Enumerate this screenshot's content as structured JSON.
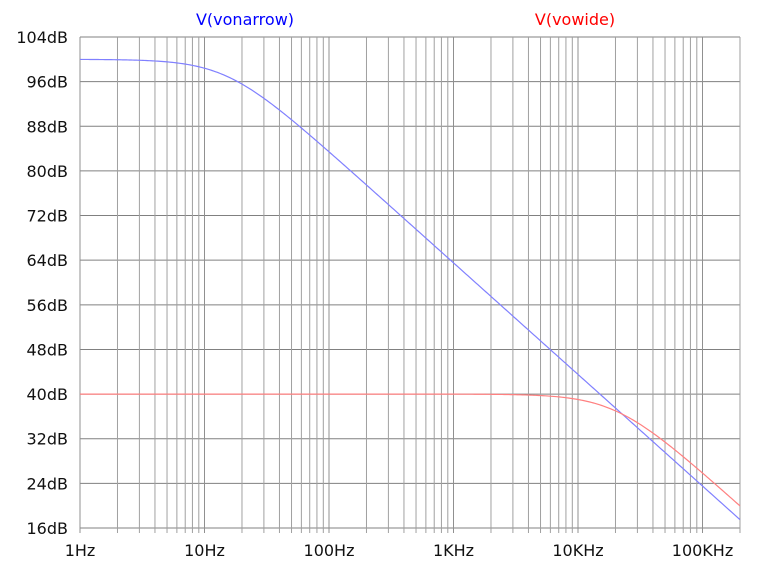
{
  "chart_data": {
    "type": "line",
    "title": "",
    "xlabel": "",
    "ylabel": "",
    "x_scale": "log",
    "xlim_hz": [
      1,
      200000
    ],
    "ylim": [
      16,
      104
    ],
    "grid": true,
    "legend_position": "top",
    "x_tick_labels": [
      "1Hz",
      "10Hz",
      "100Hz",
      "1KHz",
      "10KHz",
      "100KHz"
    ],
    "x_ticks_hz": [
      1,
      10,
      100,
      1000,
      10000,
      100000
    ],
    "y_tick_labels": [
      "104dB",
      "96dB",
      "88dB",
      "80dB",
      "72dB",
      "64dB",
      "56dB",
      "48dB",
      "40dB",
      "32dB",
      "24dB",
      "16dB"
    ],
    "y_ticks": [
      104,
      96,
      88,
      80,
      72,
      64,
      56,
      48,
      40,
      32,
      24,
      16
    ],
    "series": [
      {
        "name": "V(vonarrow)",
        "color": "#0000ff",
        "line_color": "#8080ff",
        "model": {
          "dc_gain_db": 100,
          "pole_hz": 15
        },
        "x": [
          1,
          10,
          20,
          100,
          1000,
          10000,
          20000,
          100000,
          200000
        ],
        "values": [
          100.0,
          98.4,
          96.0,
          83.5,
          63.5,
          43.5,
          37.5,
          23.5,
          17.5
        ]
      },
      {
        "name": "V(vowide)",
        "color": "#ff0000",
        "line_color": "#ff8080",
        "model": {
          "dc_gain_db": 40,
          "pole_hz": 20000
        },
        "x": [
          1,
          100,
          1000,
          10000,
          20000,
          100000,
          200000
        ],
        "values": [
          40.0,
          40.0,
          40.0,
          39.0,
          37.0,
          25.9,
          20.0
        ]
      }
    ]
  },
  "legend": {
    "series0": "V(vonarrow)",
    "series1": "V(vowide)"
  }
}
